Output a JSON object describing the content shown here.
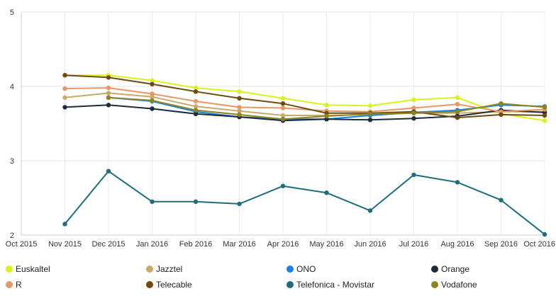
{
  "chart_data": {
    "type": "line",
    "x": [
      "Oct 2015",
      "Nov 2015",
      "Dec 2015",
      "Jan 2016",
      "Feb 2016",
      "Mar 2016",
      "Apr 2016",
      "May 2016",
      "Jun 2016",
      "Jul 2016",
      "Aug 2016",
      "Sep 2016",
      "Oct 2016"
    ],
    "x_tick_labels": [
      "Oct 2015",
      "Nov 2015",
      "Dec 2015",
      "Jan 2016",
      "Feb 2016",
      "Mar 2016",
      "Apr 2016",
      "May 2016",
      "Jun 2016",
      "Jul 2016",
      "Aug 2016",
      "Sep 2016",
      "Oct 2016"
    ],
    "y_tick_labels": [
      "2",
      "3",
      "4",
      "5"
    ],
    "ylim": [
      2,
      5
    ],
    "grid": true,
    "legend_position": "bottom",
    "series": [
      {
        "name": "Euskaltel",
        "color": "#d9f21b",
        "values": [
          null,
          4.15,
          4.15,
          4.08,
          3.98,
          3.93,
          3.84,
          3.75,
          3.74,
          3.82,
          3.85,
          3.63,
          3.54
        ]
      },
      {
        "name": "Jazztel",
        "color": "#c8a96a",
        "values": [
          null,
          3.85,
          3.91,
          3.86,
          3.73,
          3.67,
          3.61,
          3.61,
          3.62,
          3.64,
          3.64,
          3.66,
          3.66
        ]
      },
      {
        "name": "ONO",
        "color": "#1c7fe3",
        "values": [
          null,
          null,
          3.85,
          3.8,
          3.66,
          3.59,
          3.56,
          3.56,
          3.61,
          3.65,
          3.68,
          3.75,
          3.73
        ]
      },
      {
        "name": "Orange",
        "color": "#1d2b3a",
        "values": [
          null,
          3.72,
          3.75,
          3.7,
          3.63,
          3.59,
          3.54,
          3.56,
          3.55,
          3.57,
          3.6,
          3.68,
          3.65
        ]
      },
      {
        "name": "R",
        "color": "#e59866",
        "values": [
          null,
          3.97,
          3.98,
          3.9,
          3.8,
          3.72,
          3.71,
          3.67,
          3.66,
          3.71,
          3.76,
          3.66,
          3.69
        ]
      },
      {
        "name": "Telecable",
        "color": "#6e4b0c",
        "values": [
          null,
          4.15,
          4.12,
          4.03,
          3.93,
          3.84,
          3.77,
          3.64,
          3.64,
          3.66,
          3.58,
          3.62,
          3.61
        ]
      },
      {
        "name": "Telefonica - Movistar",
        "color": "#1f6c7c",
        "values": [
          null,
          2.15,
          2.86,
          2.45,
          2.45,
          2.42,
          2.66,
          2.57,
          2.33,
          2.81,
          2.71,
          2.47,
          2.01
        ]
      },
      {
        "name": "Vodafone",
        "color": "#8a8520",
        "values": [
          null,
          null,
          3.85,
          3.81,
          3.68,
          3.62,
          3.56,
          3.6,
          3.63,
          3.64,
          3.66,
          3.77,
          3.72
        ]
      }
    ]
  }
}
